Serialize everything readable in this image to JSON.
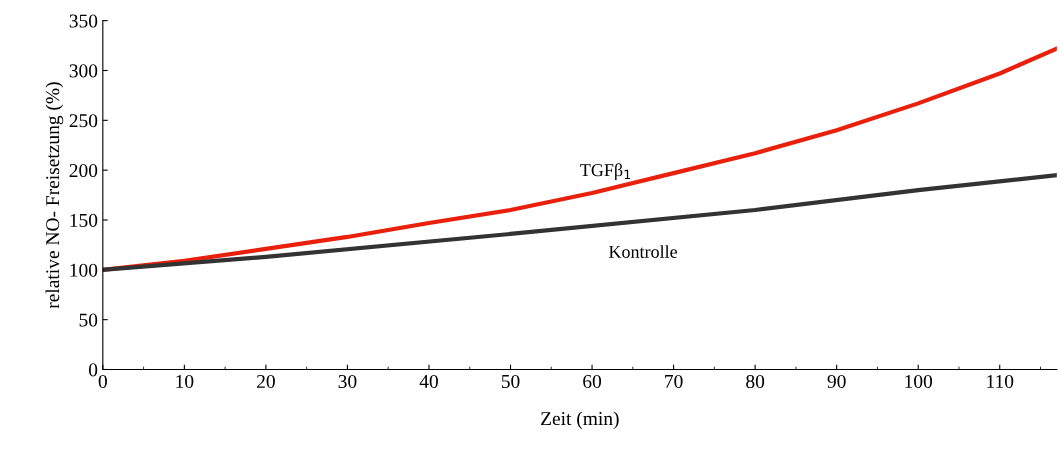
{
  "chart_data": {
    "type": "line",
    "xlabel": "Zeit (min)",
    "ylabel": "relative NO- Freisetzung (%)",
    "xlim": [
      0,
      117
    ],
    "xticks": [
      0,
      10,
      20,
      30,
      40,
      50,
      60,
      70,
      80,
      90,
      100,
      110
    ],
    "ylim": [
      0,
      350
    ],
    "yticks": [
      0,
      50,
      100,
      150,
      200,
      250,
      300,
      350
    ],
    "grid": false,
    "legend": false,
    "marker": "none",
    "line_style": "solid",
    "series": [
      {
        "name": "TGFβ$_{1}$",
        "color": "#e8200c",
        "x": [
          0,
          10,
          20,
          30,
          40,
          50,
          60,
          70,
          80,
          90,
          100,
          110,
          117
        ],
        "values": [
          100,
          109,
          121,
          133,
          147,
          160,
          177,
          197,
          217,
          240,
          267,
          297,
          322
        ]
      },
      {
        "name": "Kontrolle",
        "color": "#333333",
        "x": [
          0,
          20,
          50,
          80,
          100,
          117
        ],
        "values": [
          100,
          113,
          136,
          160,
          180,
          195
        ]
      }
    ]
  }
}
